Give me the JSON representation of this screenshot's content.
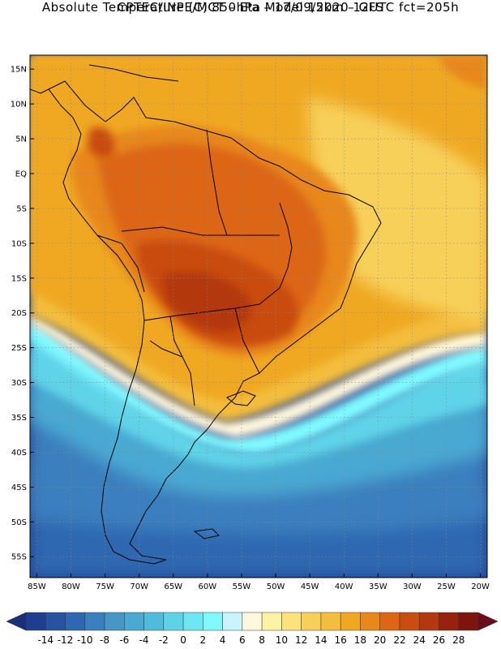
{
  "header": {
    "line1": "CPTEC/INPE/MCT –  Eta Model 15km – GFS",
    "line2": "Absolute Temperature (C) 850hPa – 17/09/2020 12UTC fct=205h"
  },
  "axes": {
    "lat_labels": [
      "15N",
      "10N",
      "5N",
      "EQ",
      "5S",
      "10S",
      "15S",
      "20S",
      "25S",
      "30S",
      "35S",
      "40S",
      "45S",
      "50S",
      "55S"
    ],
    "lon_labels": [
      "85W",
      "80W",
      "75W",
      "70W",
      "65W",
      "60W",
      "55W",
      "50W",
      "45W",
      "40W",
      "35W",
      "30W",
      "25W",
      "20W"
    ],
    "lat_range": [
      17,
      -58
    ],
    "lon_range": [
      -86,
      -19
    ],
    "grid": "dotted"
  },
  "colorbar": {
    "labels": [
      "-14",
      "-12",
      "-10",
      "-8",
      "-6",
      "-4",
      "-2",
      "0",
      "2",
      "4",
      "6",
      "8",
      "10",
      "12",
      "14",
      "16",
      "18",
      "20",
      "22",
      "24",
      "26",
      "28"
    ],
    "colors": [
      "#1f3e8f",
      "#2753a0",
      "#2e68b0",
      "#3a7fbe",
      "#4696c6",
      "#4aa9d1",
      "#50bcdb",
      "#5ed3e8",
      "#6ee6f3",
      "#7ff9ff",
      "#c8f4fb",
      "#fff8dc",
      "#fdf3a5",
      "#fbe27c",
      "#f7d05a",
      "#f3bd3d",
      "#f0a821",
      "#e8871a",
      "#dc6614",
      "#c94c10",
      "#b3380f",
      "#96220e",
      "#7c150d"
    ],
    "under_color": "#1a2f7a",
    "over_color": "#6a0d1a"
  }
}
